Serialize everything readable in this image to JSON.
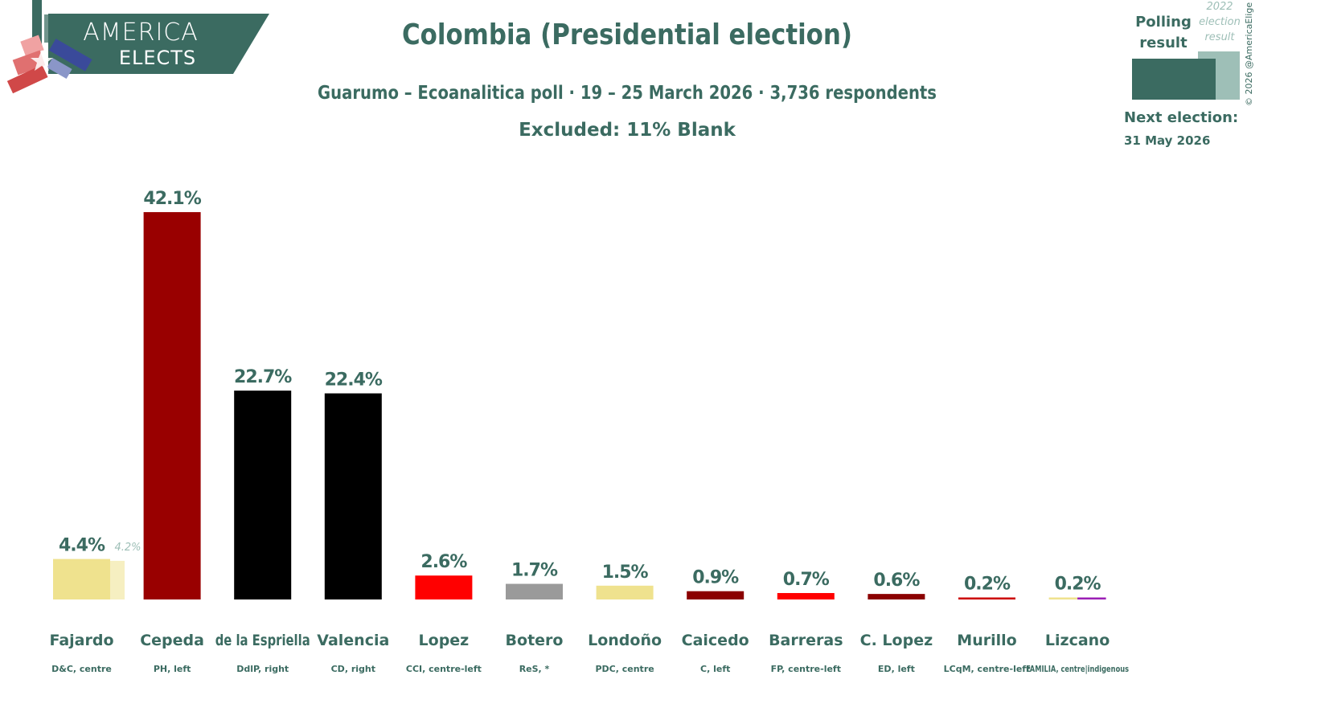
{
  "logo": {
    "line1": "AMERICA",
    "line2": "ELECTS"
  },
  "header": {
    "title": "Colombia (Presidential election)",
    "subtitle": "Guarumo – Ecoanalitica poll · 19 – 25 March 2026 · 3,736 respondents",
    "excluded": "Excluded: 11% Blank"
  },
  "legend": {
    "polling_line1": "Polling",
    "polling_line2": "result",
    "prev_line1": "2022",
    "prev_line2": "election",
    "prev_line3": "result",
    "next_label": "Next election:",
    "next_date": "31 May 2026",
    "copyright": "© 2026 @AmericaElige"
  },
  "colors": {
    "brand": "#3b6b61",
    "brand_light": "#9ebfb7"
  },
  "chart_data": {
    "type": "bar",
    "categories": [
      "Fajardo",
      "Cepeda",
      "de la Espriella",
      "Valencia",
      "Lopez",
      "Botero",
      "Londoño",
      "Caicedo",
      "Barreras",
      "C. Lopez",
      "Murillo",
      "Lizcano"
    ],
    "parties": [
      "D&C, centre",
      "PH, left",
      "DdlP, right",
      "CD, right",
      "CCI, centre-left",
      "ReS, *",
      "PDC, centre",
      "C, left",
      "FP, centre-left",
      "ED, left",
      "LCqM, centre-left",
      "FAMILIA, centre|indigenous"
    ],
    "values": [
      4.4,
      42.1,
      22.7,
      22.4,
      2.6,
      1.7,
      1.5,
      0.9,
      0.7,
      0.6,
      0.2,
      0.2
    ],
    "value_labels": [
      "4.4%",
      "42.1%",
      "22.7%",
      "22.4%",
      "2.6%",
      "1.7%",
      "1.5%",
      "0.9%",
      "0.7%",
      "0.6%",
      "0.2%",
      "0.2%"
    ],
    "colors": [
      [
        "#efe28e"
      ],
      [
        "#990000"
      ],
      [
        "#000000"
      ],
      [
        "#000000"
      ],
      [
        "#ff0000"
      ],
      [
        "#9a9a9a"
      ],
      [
        "#efe28e"
      ],
      [
        "#8b0000"
      ],
      [
        "#ff0000"
      ],
      [
        "#8b0000"
      ],
      [
        "#cc0000"
      ],
      [
        "#efe28e",
        "#9b1fb5"
      ]
    ],
    "previous": [
      4.2,
      null,
      null,
      null,
      null,
      null,
      null,
      null,
      null,
      null,
      null,
      null
    ],
    "previous_labels": [
      "4.2%",
      "",
      "",
      "",
      "",
      "",
      "",
      "",
      "",
      "",
      "",
      ""
    ],
    "ylim": [
      0,
      45
    ],
    "grid": false,
    "legend_position": "top-right"
  }
}
